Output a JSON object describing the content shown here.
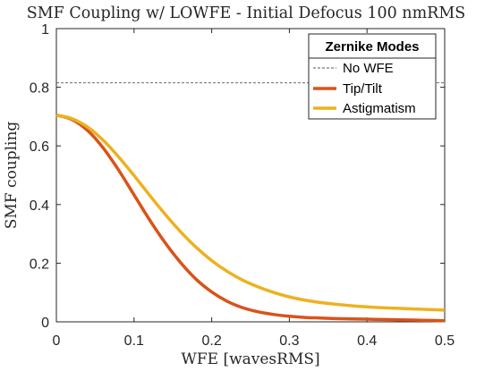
{
  "chart_data": {
    "type": "line",
    "title": "SMF Coupling w/ LOWFE - Initial Defocus 100 nmRMS",
    "xlabel": "WFE [wavesRMS]",
    "ylabel": "SMF coupling",
    "xlim": [
      0,
      0.5
    ],
    "ylim": [
      0,
      1
    ],
    "x_ticks": [
      "0",
      "0.1",
      "0.2",
      "0.3",
      "0.4",
      "0.5"
    ],
    "y_ticks": [
      "0",
      "0.2",
      "0.4",
      "0.6",
      "0.8",
      "1"
    ],
    "grid": false,
    "legend": {
      "title": "Zernike Modes",
      "position": "top-right"
    },
    "reference_line": {
      "name": "No WFE",
      "y": 0.815,
      "color": "#555555",
      "style": "dashed"
    },
    "series": [
      {
        "name": "Tip/Tilt",
        "color": "#D95319",
        "x": [
          0,
          0.02,
          0.04,
          0.06,
          0.08,
          0.1,
          0.12,
          0.14,
          0.16,
          0.18,
          0.2,
          0.22,
          0.24,
          0.26,
          0.28,
          0.3,
          0.32,
          0.34,
          0.36,
          0.38,
          0.4,
          0.42,
          0.44,
          0.46,
          0.48,
          0.5
        ],
        "y": [
          0.705,
          0.69,
          0.653,
          0.594,
          0.518,
          0.433,
          0.348,
          0.27,
          0.202,
          0.145,
          0.102,
          0.07,
          0.048,
          0.034,
          0.025,
          0.019,
          0.015,
          0.013,
          0.011,
          0.01,
          0.009,
          0.008,
          0.007,
          0.006,
          0.005,
          0.004
        ]
      },
      {
        "name": "Astigmatism",
        "color": "#EDB120",
        "x": [
          0,
          0.02,
          0.04,
          0.06,
          0.08,
          0.1,
          0.12,
          0.14,
          0.16,
          0.18,
          0.2,
          0.22,
          0.24,
          0.26,
          0.28,
          0.3,
          0.32,
          0.34,
          0.36,
          0.38,
          0.4,
          0.42,
          0.44,
          0.46,
          0.48,
          0.5
        ],
        "y": [
          0.705,
          0.693,
          0.665,
          0.62,
          0.563,
          0.499,
          0.432,
          0.367,
          0.307,
          0.254,
          0.209,
          0.172,
          0.142,
          0.119,
          0.1,
          0.085,
          0.074,
          0.066,
          0.06,
          0.055,
          0.051,
          0.048,
          0.046,
          0.044,
          0.042,
          0.04
        ]
      }
    ]
  }
}
